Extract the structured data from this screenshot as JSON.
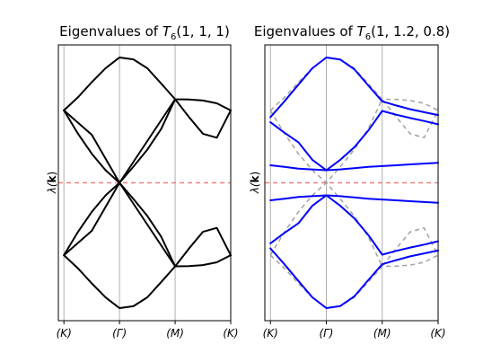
{
  "chart_data": [
    {
      "type": "line",
      "title": "Eigenvalues of T₆(1, 1, 1)",
      "title_parts": {
        "prefix": "Eigenvalues of ",
        "symbol": "T",
        "sub": "6",
        "args": "(1, 1, 1)"
      },
      "ylabel": "λ(k)",
      "ylabel_parts": {
        "symbol": "λ(",
        "bold": "k",
        "close": ")"
      },
      "x": [
        0,
        1,
        2,
        3
      ],
      "xticklabels": [
        "(K)",
        "(Γ)",
        "(M)",
        "(K)"
      ],
      "xlim": [
        -0.1,
        3.0
      ],
      "ylim": [
        -3.3,
        3.3
      ],
      "grid": "vertical at ticks",
      "reference_line": {
        "y": 0,
        "style": "dashed",
        "color": "#f08080"
      },
      "series": [
        {
          "points": [
            [
              0,
              1.732
            ],
            [
              0.25,
              2.045
            ],
            [
              0.5,
              2.408
            ],
            [
              0.75,
              2.744
            ],
            [
              1,
              3.0
            ],
            [
              1.25,
              2.953
            ],
            [
              1.5,
              2.741
            ],
            [
              1.75,
              2.374
            ],
            [
              2,
              2.0
            ],
            [
              2.25,
              1.995
            ],
            [
              2.5,
              1.97
            ],
            [
              2.75,
              1.903
            ],
            [
              3,
              1.732
            ]
          ]
        },
        {
          "points": [
            [
              0,
              1.732
            ],
            [
              0.25,
              1.18
            ],
            [
              0.5,
              0.696
            ],
            [
              0.75,
              0.301
            ],
            [
              1,
              0.0
            ],
            [
              1.25,
              0.387
            ],
            [
              1.5,
              0.794
            ],
            [
              1.75,
              1.292
            ],
            [
              2,
              2.0
            ],
            [
              2.25,
              1.573
            ],
            [
              2.5,
              1.173
            ],
            [
              2.75,
              1.079
            ],
            [
              3,
              1.732
            ]
          ]
        },
        {
          "points": [
            [
              0,
              -1.732
            ],
            [
              0.25,
              -1.18
            ],
            [
              0.5,
              -0.696
            ],
            [
              0.75,
              -0.301
            ],
            [
              1,
              0.0
            ],
            [
              1.25,
              -0.387
            ],
            [
              1.5,
              -0.794
            ],
            [
              1.75,
              -1.292
            ],
            [
              2,
              -2.0
            ],
            [
              2.25,
              -1.573
            ],
            [
              2.5,
              -1.173
            ],
            [
              2.75,
              -1.079
            ],
            [
              3,
              -1.732
            ]
          ]
        },
        {
          "points": [
            [
              0,
              -1.732
            ],
            [
              0.25,
              -2.045
            ],
            [
              0.5,
              -2.408
            ],
            [
              0.75,
              -2.744
            ],
            [
              1,
              -3.0
            ],
            [
              1.25,
              -2.953
            ],
            [
              1.5,
              -2.741
            ],
            [
              1.75,
              -2.374
            ],
            [
              2,
              -2.0
            ],
            [
              2.25,
              -1.995
            ],
            [
              2.5,
              -1.97
            ],
            [
              2.75,
              -1.903
            ],
            [
              3,
              -1.732
            ]
          ]
        },
        {
          "points": [
            [
              0,
              1.732
            ],
            [
              0.5,
              1.15
            ],
            [
              1,
              0.0
            ],
            [
              1.5,
              1.0
            ],
            [
              2,
              2.0
            ]
          ]
        },
        {
          "points": [
            [
              0,
              -1.732
            ],
            [
              0.5,
              -1.15
            ],
            [
              1,
              0.0
            ],
            [
              1.5,
              -1.0
            ],
            [
              2,
              -2.0
            ]
          ]
        }
      ],
      "series_color": "#000000"
    },
    {
      "type": "line",
      "title": "Eigenvalues of T₆(1, 1.2, 0.8)",
      "title_parts": {
        "prefix": "Eigenvalues of ",
        "symbol": "T",
        "sub": "6",
        "args": "(1, 1.2, 0.8)"
      },
      "ylabel": "λ(k)",
      "ylabel_parts": {
        "symbol": "λ(",
        "bold": "k",
        "close": ")"
      },
      "x": [
        0,
        1,
        2,
        3
      ],
      "xticklabels": [
        "(K)",
        "(Γ)",
        "(M)",
        "(K)"
      ],
      "xlim": [
        -0.1,
        3.0
      ],
      "ylim": [
        -3.3,
        3.3
      ],
      "grid": "vertical at ticks",
      "reference_line": {
        "y": 0,
        "style": "dashed",
        "color": "#f08080"
      },
      "series": [
        {
          "points": [
            [
              0,
              1.57
            ],
            [
              0.25,
              1.95
            ],
            [
              0.5,
              2.35
            ],
            [
              0.75,
              2.74
            ],
            [
              1,
              3.0
            ],
            [
              1.25,
              2.95
            ],
            [
              1.5,
              2.72
            ],
            [
              1.75,
              2.33
            ],
            [
              2,
              1.95
            ],
            [
              2.25,
              1.85
            ],
            [
              2.5,
              1.76
            ],
            [
              2.75,
              1.69
            ],
            [
              3,
              1.62
            ]
          ]
        },
        {
          "points": [
            [
              0,
              1.45
            ],
            [
              0.25,
              1.2
            ],
            [
              0.5,
              0.97
            ],
            [
              0.75,
              0.55
            ],
            [
              1,
              0.3
            ],
            [
              1.25,
              0.55
            ],
            [
              1.5,
              0.85
            ],
            [
              1.75,
              1.25
            ],
            [
              2,
              1.72
            ],
            [
              2.25,
              1.63
            ],
            [
              2.5,
              1.55
            ],
            [
              2.75,
              1.48
            ],
            [
              3,
              1.4
            ]
          ]
        },
        {
          "points": [
            [
              0,
              -1.45
            ],
            [
              0.25,
              -1.2
            ],
            [
              0.5,
              -0.97
            ],
            [
              0.75,
              -0.55
            ],
            [
              1,
              -0.3
            ],
            [
              1.25,
              -0.55
            ],
            [
              1.5,
              -0.85
            ],
            [
              1.75,
              -1.25
            ],
            [
              2,
              -1.72
            ],
            [
              2.25,
              -1.63
            ],
            [
              2.5,
              -1.55
            ],
            [
              2.75,
              -1.48
            ],
            [
              3,
              -1.4
            ]
          ]
        },
        {
          "points": [
            [
              0,
              -1.57
            ],
            [
              0.25,
              -1.95
            ],
            [
              0.5,
              -2.35
            ],
            [
              0.75,
              -2.74
            ],
            [
              1,
              -3.0
            ],
            [
              1.25,
              -2.95
            ],
            [
              1.5,
              -2.72
            ],
            [
              1.75,
              -2.33
            ],
            [
              2,
              -1.95
            ],
            [
              2.25,
              -1.85
            ],
            [
              2.5,
              -1.76
            ],
            [
              2.75,
              -1.69
            ],
            [
              3,
              -1.62
            ]
          ]
        },
        {
          "points": [
            [
              0,
              0.42
            ],
            [
              0.25,
              0.38
            ],
            [
              0.5,
              0.34
            ],
            [
              0.75,
              0.32
            ],
            [
              1,
              0.3
            ],
            [
              1.25,
              0.32
            ],
            [
              1.5,
              0.35
            ],
            [
              1.75,
              0.38
            ],
            [
              2,
              0.4
            ],
            [
              2.25,
              0.42
            ],
            [
              2.5,
              0.44
            ],
            [
              2.75,
              0.46
            ],
            [
              3,
              0.48
            ]
          ]
        },
        {
          "points": [
            [
              0,
              -0.42
            ],
            [
              0.25,
              -0.38
            ],
            [
              0.5,
              -0.34
            ],
            [
              0.75,
              -0.32
            ],
            [
              1,
              -0.3
            ],
            [
              1.25,
              -0.32
            ],
            [
              1.5,
              -0.35
            ],
            [
              1.75,
              -0.38
            ],
            [
              2,
              -0.4
            ],
            [
              2.25,
              -0.42
            ],
            [
              2.5,
              -0.44
            ],
            [
              2.75,
              -0.46
            ],
            [
              3,
              -0.48
            ]
          ]
        }
      ],
      "series_color": "#0000ff",
      "reference_curves": {
        "color": "#a0a0a0",
        "style": "dashed",
        "series": [
          {
            "points": [
              [
                0,
                1.732
              ],
              [
                0.25,
                2.045
              ],
              [
                0.5,
                2.408
              ],
              [
                0.75,
                2.744
              ],
              [
                1,
                3.0
              ],
              [
                1.25,
                2.953
              ],
              [
                1.5,
                2.741
              ],
              [
                1.75,
                2.374
              ],
              [
                2,
                2.0
              ],
              [
                2.25,
                1.995
              ],
              [
                2.5,
                1.97
              ],
              [
                2.75,
                1.903
              ],
              [
                3,
                1.732
              ]
            ]
          },
          {
            "points": [
              [
                0,
                1.732
              ],
              [
                0.25,
                1.18
              ],
              [
                0.5,
                0.696
              ],
              [
                0.75,
                0.301
              ],
              [
                1,
                0.0
              ],
              [
                1.25,
                0.387
              ],
              [
                1.5,
                0.794
              ],
              [
                1.75,
                1.292
              ],
              [
                2,
                2.0
              ],
              [
                2.25,
                1.573
              ],
              [
                2.5,
                1.173
              ],
              [
                2.75,
                1.079
              ],
              [
                3,
                1.732
              ]
            ]
          },
          {
            "points": [
              [
                0,
                -1.732
              ],
              [
                0.25,
                -1.18
              ],
              [
                0.5,
                -0.696
              ],
              [
                0.75,
                -0.301
              ],
              [
                1,
                0.0
              ],
              [
                1.25,
                -0.387
              ],
              [
                1.5,
                -0.794
              ],
              [
                1.75,
                -1.292
              ],
              [
                2,
                -2.0
              ],
              [
                2.25,
                -1.573
              ],
              [
                2.5,
                -1.173
              ],
              [
                2.75,
                -1.079
              ],
              [
                3,
                -1.732
              ]
            ]
          },
          {
            "points": [
              [
                0,
                -1.732
              ],
              [
                0.25,
                -2.045
              ],
              [
                0.5,
                -2.408
              ],
              [
                0.75,
                -2.744
              ],
              [
                1,
                -3.0
              ],
              [
                1.25,
                -2.953
              ],
              [
                1.5,
                -2.741
              ],
              [
                1.75,
                -2.374
              ],
              [
                2,
                -2.0
              ],
              [
                2.25,
                -1.995
              ],
              [
                2.5,
                -1.97
              ],
              [
                2.75,
                -1.903
              ],
              [
                3,
                -1.732
              ]
            ]
          }
        ]
      }
    }
  ]
}
